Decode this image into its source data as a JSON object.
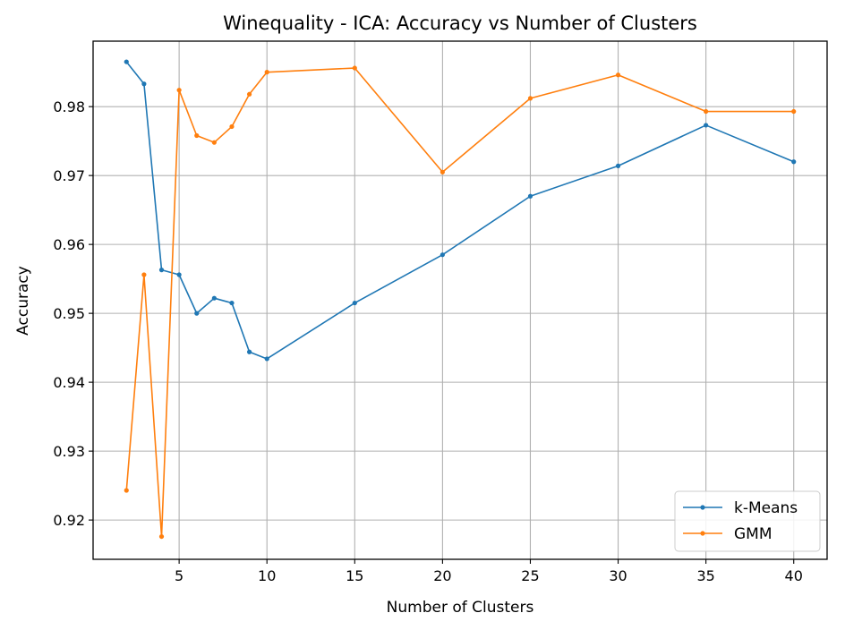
{
  "chart_data": {
    "type": "line",
    "title": "Winequality - ICA: Accuracy vs Number of Clusters",
    "xlabel": "Number of Clusters",
    "ylabel": "Accuracy",
    "xlim": [
      0.1,
      41.9
    ],
    "ylim": [
      0.9143,
      0.9895
    ],
    "xticks": [
      5,
      10,
      15,
      20,
      25,
      30,
      35,
      40
    ],
    "yticks": [
      0.92,
      0.93,
      0.94,
      0.95,
      0.96,
      0.97,
      0.98
    ],
    "grid": true,
    "legend_position": "lower-right",
    "series": [
      {
        "name": "k-Means",
        "color": "#1f77b4",
        "x": [
          2,
          3,
          4,
          5,
          6,
          7,
          8,
          9,
          10,
          15,
          20,
          25,
          30,
          35,
          40
        ],
        "y": [
          0.9865,
          0.9833,
          0.9563,
          0.9556,
          0.95,
          0.9522,
          0.9515,
          0.9444,
          0.9434,
          0.9515,
          0.9585,
          0.967,
          0.9714,
          0.9773,
          0.972
        ]
      },
      {
        "name": "GMM",
        "color": "#ff7f0e",
        "x": [
          2,
          3,
          4,
          5,
          6,
          7,
          8,
          9,
          10,
          15,
          20,
          25,
          30,
          35,
          40
        ],
        "y": [
          0.9243,
          0.9556,
          0.9176,
          0.9824,
          0.9758,
          0.9748,
          0.9771,
          0.9818,
          0.985,
          0.9856,
          0.9705,
          0.9812,
          0.9846,
          0.9793,
          0.9793
        ]
      }
    ]
  }
}
